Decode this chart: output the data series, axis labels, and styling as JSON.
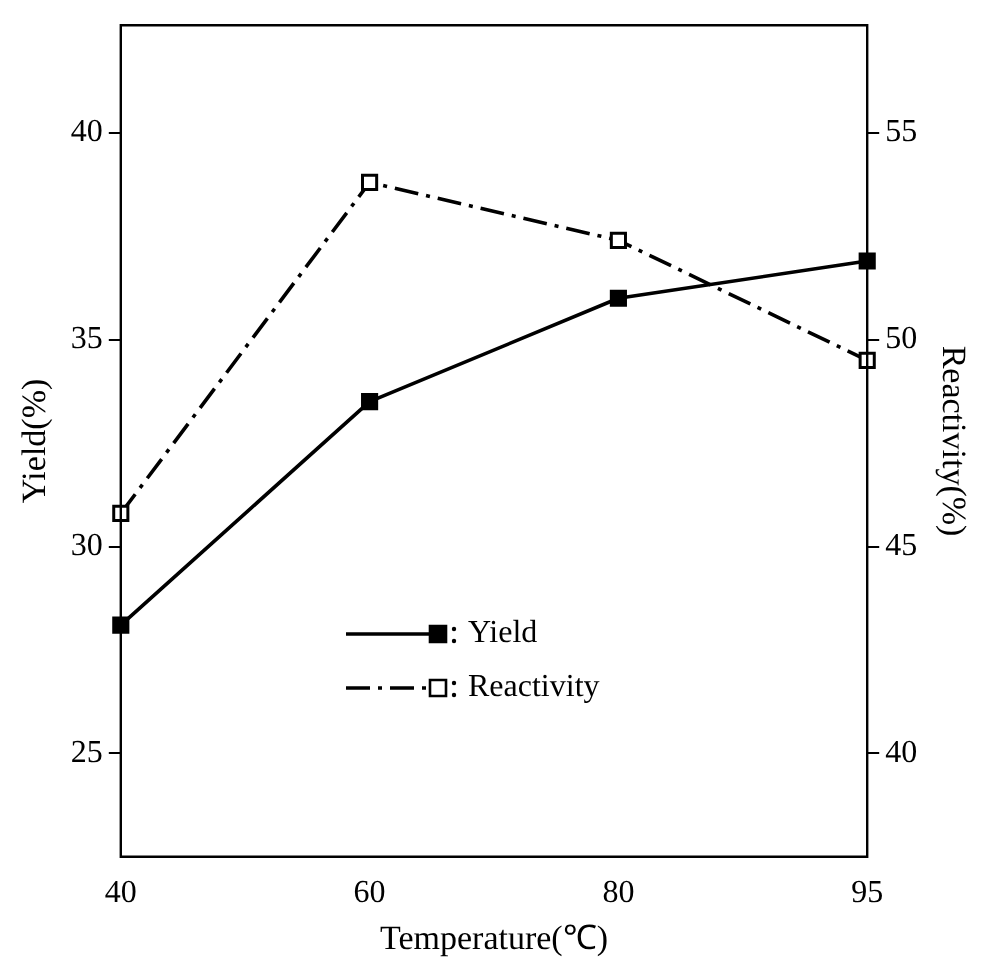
{
  "chart_data": {
    "type": "line",
    "xlabel": "Temperature(℃)",
    "ylabel": "Yield(%)",
    "y2label": "Reactivity(%)",
    "categories": [
      "40",
      "60",
      "80",
      "95"
    ],
    "ylim": [
      22.5,
      42.6
    ],
    "yticks": [
      25,
      30,
      35,
      40
    ],
    "y2lim": [
      37.5,
      57.6
    ],
    "y2ticks": [
      40,
      45,
      50,
      55
    ],
    "grid": false,
    "legend": "bottom",
    "marker": "square",
    "series": [
      {
        "name": "Yield",
        "color": "#000000",
        "values": [
          28.1,
          33.5,
          36.0,
          36.9
        ],
        "line_style": "solid"
      },
      {
        "name": "Reactivity",
        "color": "#000000",
        "values": [
          45.8,
          53.8,
          52.4,
          49.5
        ],
        "line_style": "dashdot",
        "axis": "y2"
      }
    ]
  }
}
